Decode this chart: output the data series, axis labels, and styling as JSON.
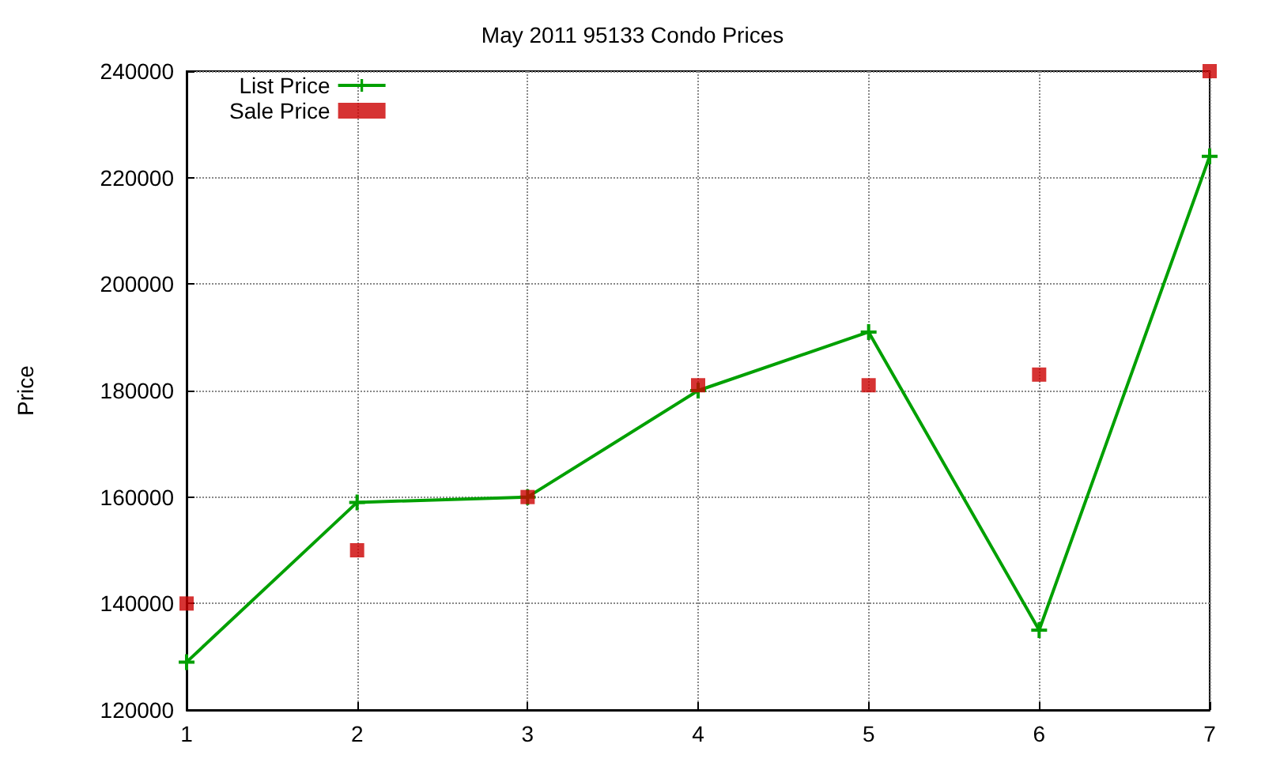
{
  "chart_data": {
    "type": "line",
    "title": "May 2011 95133 Condo Prices",
    "ylabel": "Price",
    "x": [
      1,
      2,
      3,
      4,
      5,
      6,
      7
    ],
    "xlim": [
      1,
      7
    ],
    "xticks": [
      1,
      2,
      3,
      4,
      5,
      6,
      7
    ],
    "ylim": [
      120000,
      240000
    ],
    "yticks": [
      120000,
      140000,
      160000,
      180000,
      200000,
      220000,
      240000
    ],
    "grid": true,
    "legend": "top left",
    "series": [
      {
        "name": "List Price",
        "marker": "cross",
        "line_style": "solid",
        "color": "#00a000",
        "values": [
          129000,
          159000,
          160000,
          180000,
          191000,
          135000,
          224000
        ]
      },
      {
        "name": "Sale Price",
        "type": "scatter",
        "marker": "square",
        "color": "#cc0000",
        "values": [
          140000,
          150000,
          160000,
          181000,
          181000,
          183000,
          240000
        ]
      }
    ]
  }
}
